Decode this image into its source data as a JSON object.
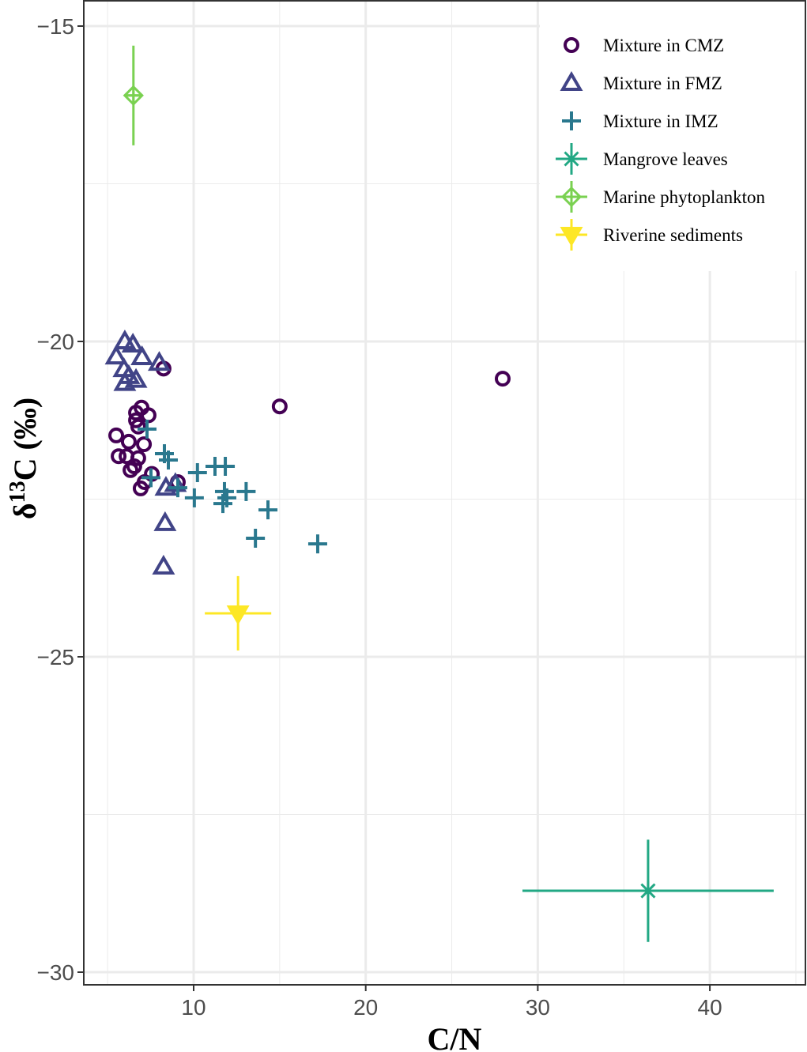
{
  "chart_data": {
    "type": "scatter",
    "xlabel": "C/N",
    "ylabel": "δ13C (‰)",
    "ylabel_parts": {
      "main": "δ",
      "sup": "13",
      "rest": "C (‰)"
    },
    "xlim": [
      4,
      46
    ],
    "ylim": [
      -30.2,
      -14.65
    ],
    "xticks": [
      10,
      20,
      30,
      40
    ],
    "xtick_labels": [
      "10",
      "20",
      "30",
      "40"
    ],
    "yticks": [
      -15,
      -20,
      -25,
      -30
    ],
    "ytick_labels": [
      "−15",
      "−20",
      "−25",
      "−30"
    ],
    "grid": true,
    "legend_position": "top-right",
    "series": [
      {
        "name": "Mixture in CMZ",
        "marker": "circle",
        "color": "#440154",
        "points": [
          [
            8.25,
            -20.43
          ],
          [
            27.96,
            -20.59
          ],
          [
            15.0,
            -21.03
          ],
          [
            6.97,
            -21.05
          ],
          [
            7.38,
            -21.17
          ],
          [
            6.65,
            -21.13
          ],
          [
            6.65,
            -21.25
          ],
          [
            6.78,
            -21.35
          ],
          [
            5.5,
            -21.49
          ],
          [
            6.23,
            -21.59
          ],
          [
            7.11,
            -21.63
          ],
          [
            5.64,
            -21.82
          ],
          [
            6.1,
            -21.82
          ],
          [
            6.78,
            -21.85
          ],
          [
            6.33,
            -22.04
          ],
          [
            7.57,
            -22.1
          ],
          [
            6.92,
            -22.33
          ],
          [
            7.15,
            -22.23
          ],
          [
            9.08,
            -22.23
          ],
          [
            6.55,
            -21.98
          ]
        ]
      },
      {
        "name": "Mixture in FMZ",
        "marker": "triangle",
        "color": "#414487",
        "points": [
          [
            6.0,
            -20.0
          ],
          [
            6.47,
            -20.05
          ],
          [
            5.5,
            -20.24
          ],
          [
            7.0,
            -20.25
          ],
          [
            8.0,
            -20.34
          ],
          [
            5.95,
            -20.44
          ],
          [
            6.23,
            -20.55
          ],
          [
            6.65,
            -20.61
          ],
          [
            6.0,
            -20.66
          ],
          [
            8.39,
            -22.32
          ],
          [
            8.94,
            -22.26
          ],
          [
            8.34,
            -22.88
          ],
          [
            8.25,
            -23.57
          ]
        ]
      },
      {
        "name": "Mixture in IMZ",
        "marker": "plus",
        "color": "#2A788E",
        "points": [
          [
            7.29,
            -21.39
          ],
          [
            8.3,
            -21.78
          ],
          [
            8.53,
            -21.88
          ],
          [
            7.52,
            -22.16
          ],
          [
            9.08,
            -22.32
          ],
          [
            10.22,
            -22.08
          ],
          [
            10.04,
            -22.48
          ],
          [
            11.24,
            -21.98
          ],
          [
            11.84,
            -21.98
          ],
          [
            11.79,
            -22.38
          ],
          [
            11.7,
            -22.57
          ],
          [
            11.93,
            -22.48
          ],
          [
            13.05,
            -22.38
          ],
          [
            14.32,
            -22.67
          ],
          [
            13.59,
            -23.12
          ],
          [
            17.21,
            -23.21
          ]
        ]
      },
      {
        "name": "Mangrove leaves",
        "marker": "asterisk",
        "color": "#22A884",
        "points": [
          [
            36.41,
            -28.71
          ]
        ],
        "xerr": 7.3,
        "yerr": 0.81
      },
      {
        "name": "Marine phytoplankton",
        "marker": "diamondplus",
        "color": "#7AD151",
        "points": [
          [
            6.5,
            -16.1
          ]
        ],
        "xerr": 0.4,
        "yerr": 0.79
      },
      {
        "name": "Riverine sediments",
        "marker": "downtriangle",
        "color": "#FDE725",
        "points": [
          [
            12.58,
            -24.31
          ]
        ],
        "xerr": 1.93,
        "yerr": 0.59
      }
    ]
  }
}
